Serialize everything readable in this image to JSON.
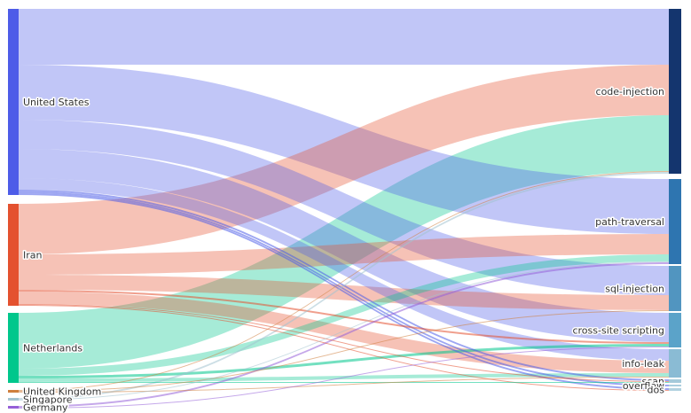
{
  "chart_data": {
    "type": "sankey",
    "title": "",
    "orientation": "horizontal",
    "legend_position": "none",
    "grid": false,
    "label_color": "#333333",
    "link_opacity": 0.35,
    "thin_link_opacity": 0.55,
    "nodes": {
      "sources": [
        {
          "label": "United States",
          "color": "#4d5ce8"
        },
        {
          "label": "Iran",
          "color": "#e4512f"
        },
        {
          "label": "Netherlands",
          "color": "#00c78c"
        },
        {
          "label": "United Kingdom",
          "color": "#cf7f3e"
        },
        {
          "label": "Singapore",
          "color": "#a3c3cf"
        },
        {
          "label": "Germany",
          "color": "#9660d8"
        }
      ],
      "targets": [
        {
          "label": "code-injection",
          "color": "#14356e"
        },
        {
          "label": "path-traversal",
          "color": "#2e75b0"
        },
        {
          "label": "sql-injection",
          "color": "#5195c0"
        },
        {
          "label": "cross-site scripting",
          "color": "#5ba3c9"
        },
        {
          "label": "info-leak",
          "color": "#8abbd4"
        },
        {
          "label": "scan",
          "color": "#a5cada"
        },
        {
          "label": "overflow",
          "color": "#abcede"
        },
        {
          "label": "dos",
          "color": "#b2d2e0"
        }
      ]
    },
    "links": [
      {
        "source": "United States",
        "target": "code-injection",
        "value": 63
      },
      {
        "source": "United States",
        "target": "path-traversal",
        "value": 62
      },
      {
        "source": "United States",
        "target": "sql-injection",
        "value": 33
      },
      {
        "source": "United States",
        "target": "cross-site scripting",
        "value": 33
      },
      {
        "source": "United States",
        "target": "info-leak",
        "value": 13
      },
      {
        "source": "United States",
        "target": "scan",
        "value": 2
      },
      {
        "source": "United States",
        "target": "overflow",
        "value": 2
      },
      {
        "source": "United States",
        "target": "dos",
        "value": 2
      },
      {
        "source": "Iran",
        "target": "code-injection",
        "value": 57
      },
      {
        "source": "Iran",
        "target": "path-traversal",
        "value": 23
      },
      {
        "source": "Iran",
        "target": "sql-injection",
        "value": 17
      },
      {
        "source": "Iran",
        "target": "cross-site scripting",
        "value": 2
      },
      {
        "source": "Iran",
        "target": "info-leak",
        "value": 14
      },
      {
        "source": "Iran",
        "target": "scan",
        "value": 1
      },
      {
        "source": "Iran",
        "target": "dos",
        "value": 1
      },
      {
        "source": "Netherlands",
        "target": "code-injection",
        "value": 63
      },
      {
        "source": "Netherlands",
        "target": "path-traversal",
        "value": 8
      },
      {
        "source": "Netherlands",
        "target": "cross-site scripting",
        "value": 3
      },
      {
        "source": "Netherlands",
        "target": "info-leak",
        "value": 4
      },
      {
        "source": "Netherlands",
        "target": "scan",
        "value": 1
      },
      {
        "source": "United Kingdom",
        "target": "code-injection",
        "value": 1
      },
      {
        "source": "United Kingdom",
        "target": "sql-injection",
        "value": 1
      },
      {
        "source": "United Kingdom",
        "target": "info-leak",
        "value": 1
      },
      {
        "source": "Singapore",
        "target": "code-injection",
        "value": 2
      },
      {
        "source": "Singapore",
        "target": "path-traversal",
        "value": 1
      },
      {
        "source": "Germany",
        "target": "path-traversal",
        "value": 2
      },
      {
        "source": "Germany",
        "target": "cross-site scripting",
        "value": 1
      }
    ]
  }
}
